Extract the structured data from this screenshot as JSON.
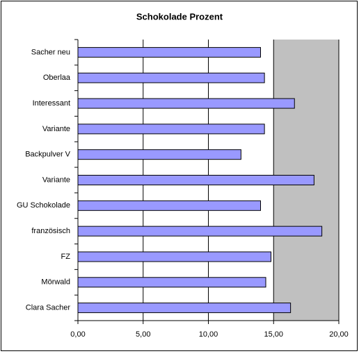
{
  "chart_data": {
    "type": "bar",
    "orientation": "horizontal",
    "title": "Schokolade Prozent",
    "categories": [
      "Sacher neu",
      "Oberlaa",
      "Interessant",
      "Variante",
      "Backpulver V",
      "Variante",
      "GU Schokolade",
      "französisch",
      "FZ",
      "Mörwald",
      "Clara Sacher"
    ],
    "values": [
      14.0,
      14.3,
      16.6,
      14.3,
      12.5,
      18.1,
      14.0,
      18.7,
      14.8,
      14.4,
      16.3
    ],
    "color": "#9999ff",
    "xlim": [
      0,
      20
    ],
    "xticks": [
      {
        "value": 0,
        "label": "0,00"
      },
      {
        "value": 5,
        "label": "5,00"
      },
      {
        "value": 10,
        "label": "10,00"
      },
      {
        "value": 15,
        "label": "15,00"
      },
      {
        "value": 20,
        "label": "20,00"
      }
    ],
    "grid": true
  }
}
